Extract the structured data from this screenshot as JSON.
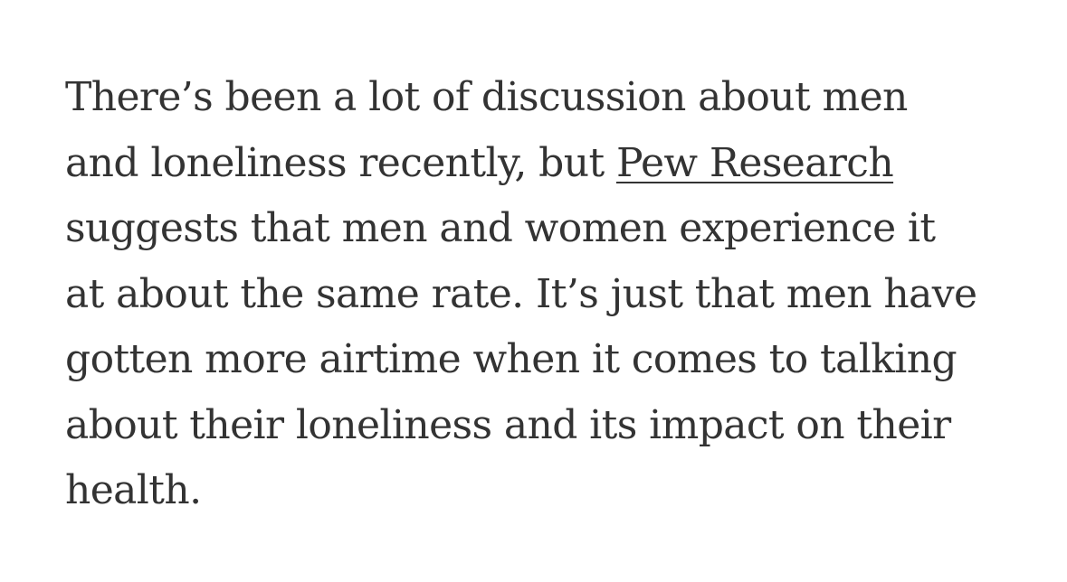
{
  "article": {
    "lines": [
      {
        "text": "There’s been a lot of discussion about men"
      },
      {
        "before": "and loneliness recently, but ",
        "link": "Pew Research"
      },
      {
        "text": "suggests that men and women experience it"
      },
      {
        "text": "at about the same rate. It’s just that men have"
      },
      {
        "text": "gotten more airtime when it comes to talking"
      },
      {
        "text": "about their loneliness and its impact on their"
      },
      {
        "text": "health."
      }
    ]
  }
}
